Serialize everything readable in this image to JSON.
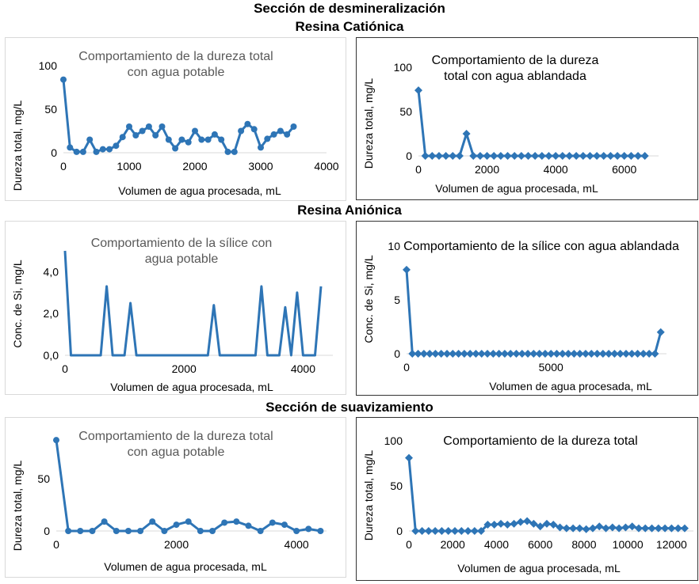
{
  "headers": {
    "main": "Sección de desmineralización",
    "cationic": "Resina Catiónica",
    "anionic": "Resina Aniónica",
    "softening": "Sección de suavizamiento"
  },
  "colors": {
    "series": "#2e75b6",
    "title_gray": "#595959"
  },
  "chart_data": [
    {
      "type": "line",
      "marker": "circle",
      "title": "Comportamiento de la dureza total con agua potable",
      "xlabel": "Volumen de agua procesada, mL",
      "ylabel": "Dureza total, mg/L",
      "xlim": [
        0,
        4000
      ],
      "ylim": [
        0,
        100
      ],
      "xticks": [
        0,
        1000,
        2000,
        3000,
        4000
      ],
      "yticks": [
        0,
        50,
        100
      ],
      "xticklabels": [
        "0",
        "1000",
        "2000",
        "3000",
        "4000"
      ],
      "yticklabels": [
        "0",
        "50",
        "100"
      ],
      "grid": false,
      "x": [
        0,
        100,
        200,
        300,
        400,
        500,
        600,
        700,
        800,
        900,
        1000,
        1100,
        1200,
        1300,
        1400,
        1500,
        1600,
        1700,
        1800,
        1900,
        2000,
        2100,
        2200,
        2300,
        2400,
        2500,
        2600,
        2700,
        2800,
        2900,
        3000,
        3100,
        3200,
        3300,
        3400,
        3500
      ],
      "y": [
        84,
        6,
        1,
        1,
        15,
        1,
        4,
        4,
        8,
        18,
        30,
        20,
        25,
        30,
        20,
        30,
        15,
        5,
        15,
        12,
        25,
        15,
        15,
        21,
        15,
        1,
        1,
        25,
        33,
        27,
        6,
        16,
        21,
        25,
        21,
        30
      ]
    },
    {
      "type": "line",
      "marker": "diamond",
      "title": "Comportamiento de la dureza total con agua ablandada",
      "xlabel": "Volumen de agua procesada, mL",
      "ylabel": "Dureza total, mg/L",
      "xlim": [
        0,
        7000
      ],
      "ylim": [
        0,
        100
      ],
      "xticks": [
        0,
        2000,
        4000,
        6000
      ],
      "yticks": [
        0,
        50,
        100
      ],
      "xticklabels": [
        "0",
        "2000",
        "4000",
        "6000"
      ],
      "yticklabels": [
        "0",
        "50",
        "100"
      ],
      "grid": false,
      "x": [
        0,
        200,
        400,
        600,
        800,
        1000,
        1200,
        1400,
        1600,
        1800,
        2000,
        2200,
        2400,
        2600,
        2800,
        3000,
        3200,
        3400,
        3600,
        3800,
        4000,
        4200,
        4400,
        4600,
        4800,
        5000,
        5200,
        5400,
        5600,
        5800,
        6000,
        6200,
        6400,
        6600
      ],
      "y": [
        74,
        0,
        0,
        0,
        0,
        0,
        0,
        25,
        0,
        0,
        0,
        0,
        0,
        0,
        0,
        0,
        0,
        0,
        0,
        0,
        0,
        0,
        0,
        0,
        0,
        0,
        0,
        0,
        0,
        0,
        0,
        0,
        0,
        0
      ]
    },
    {
      "type": "line",
      "marker": "none",
      "title": "Comportamiento de la sílice con agua potable",
      "xlabel": "Volumen de agua procesada, mL",
      "ylabel": "Conc. de Si, mg/L",
      "xlim": [
        0,
        4500
      ],
      "ylim": [
        0,
        5
      ],
      "xticks": [
        0,
        2000,
        4000
      ],
      "yticks": [
        0,
        2,
        4
      ],
      "xticklabels": [
        "0",
        "2000",
        "4000"
      ],
      "yticklabels": [
        "0,0",
        "2,0",
        "4,0"
      ],
      "grid": false,
      "x": [
        0,
        100,
        200,
        300,
        400,
        500,
        600,
        700,
        800,
        900,
        1000,
        1100,
        1200,
        1300,
        1400,
        1500,
        1600,
        1700,
        1800,
        1900,
        2000,
        2100,
        2200,
        2300,
        2400,
        2500,
        2600,
        2700,
        2800,
        2900,
        3000,
        3100,
        3200,
        3300,
        3400,
        3500,
        3600,
        3700,
        3800,
        3900,
        4000,
        4100,
        4200,
        4300
      ],
      "y": [
        5.0,
        0,
        0,
        0,
        0,
        0,
        0,
        3.3,
        0,
        0,
        0,
        2.5,
        0,
        0,
        0,
        0,
        0,
        0,
        0,
        0,
        0,
        0,
        0,
        0,
        0,
        2.4,
        0,
        0,
        0,
        0,
        0,
        0,
        0,
        3.3,
        0,
        0,
        0,
        2.3,
        0,
        3.0,
        0,
        0,
        0,
        3.3
      ]
    },
    {
      "type": "line",
      "marker": "diamond",
      "title": "Comportamiento de la sílice con agua ablandada",
      "xlabel": "Volumen de agua procesada, mL",
      "ylabel": "Conc. de Si, mg/L",
      "xlim": [
        0,
        9000
      ],
      "ylim": [
        0,
        10
      ],
      "xticks": [
        0,
        5000
      ],
      "yticks": [
        0,
        5,
        10
      ],
      "xticklabels": [
        "0",
        "5000"
      ],
      "yticklabels": [
        "0",
        "5",
        "10"
      ],
      "grid": false,
      "x": [
        0,
        200,
        400,
        600,
        800,
        1000,
        1200,
        1400,
        1600,
        1800,
        2000,
        2200,
        2400,
        2600,
        2800,
        3000,
        3200,
        3400,
        3600,
        3800,
        4000,
        4200,
        4400,
        4600,
        4800,
        5000,
        5200,
        5400,
        5600,
        5800,
        6000,
        6200,
        6400,
        6600,
        6800,
        7000,
        7200,
        7400,
        7600,
        7800,
        8000,
        8200,
        8400,
        8600,
        8800
      ],
      "y": [
        7.8,
        0,
        0,
        0,
        0,
        0,
        0,
        0,
        0,
        0,
        0,
        0,
        0,
        0,
        0,
        0,
        0,
        0,
        0,
        0,
        0,
        0,
        0,
        0,
        0,
        0,
        0,
        0,
        0,
        0,
        0,
        0,
        0,
        0,
        0,
        0,
        0,
        0,
        0,
        0,
        0,
        0,
        0,
        0,
        2.0
      ]
    },
    {
      "type": "line",
      "marker": "circle",
      "title": "Comportamiento de la dureza total con agua potable",
      "xlabel": "Volumen de agua procesada, mL",
      "ylabel": "Dureza total, mg/L",
      "xlim": [
        0,
        4500
      ],
      "ylim": [
        0,
        100
      ],
      "xticks": [
        0,
        2000,
        4000
      ],
      "yticks": [
        0,
        50
      ],
      "xticklabels": [
        "0",
        "2000",
        "4000"
      ],
      "yticklabels": [
        "0",
        "50"
      ],
      "grid": false,
      "x": [
        0,
        200,
        400,
        600,
        800,
        1000,
        1200,
        1400,
        1600,
        1800,
        2000,
        2200,
        2400,
        2600,
        2800,
        3000,
        3200,
        3400,
        3600,
        3800,
        4000,
        4200,
        4400
      ],
      "y": [
        87,
        0,
        0,
        0,
        9,
        0,
        0,
        0,
        9,
        0,
        6,
        9,
        0,
        0,
        8,
        9,
        5,
        0,
        8,
        6,
        0,
        2,
        0
      ]
    },
    {
      "type": "line",
      "marker": "diamond",
      "title": "Comportamiento de la dureza total",
      "xlabel": "Volumen de agua procesada, mL",
      "ylabel": "Dureza total, mg/L",
      "xlim": [
        0,
        13000
      ],
      "ylim": [
        0,
        100
      ],
      "xticks": [
        0,
        2000,
        4000,
        6000,
        8000,
        10000,
        12000
      ],
      "yticks": [
        0,
        50,
        100
      ],
      "xticklabels": [
        "0",
        "2000",
        "4000",
        "6000",
        "8000",
        "10000",
        "12000"
      ],
      "yticklabels": [
        "0",
        "50",
        "100"
      ],
      "grid": false,
      "x": [
        0,
        300,
        600,
        900,
        1200,
        1500,
        1800,
        2100,
        2400,
        2700,
        3000,
        3300,
        3600,
        3900,
        4200,
        4500,
        4800,
        5100,
        5400,
        5700,
        6000,
        6300,
        6600,
        6900,
        7200,
        7500,
        7800,
        8100,
        8400,
        8700,
        9000,
        9300,
        9600,
        9900,
        10200,
        10500,
        10800,
        11100,
        11400,
        11700,
        12000,
        12300,
        12600
      ],
      "y": [
        81,
        0,
        0,
        0,
        0,
        0,
        0,
        0,
        0,
        0,
        0,
        0,
        7,
        7,
        8,
        7,
        8,
        10,
        11,
        8,
        5,
        8,
        7,
        4,
        3,
        3,
        3,
        2,
        3,
        5,
        3,
        4,
        3,
        4,
        5,
        3,
        3,
        3,
        3,
        3,
        3,
        3,
        3
      ]
    }
  ]
}
